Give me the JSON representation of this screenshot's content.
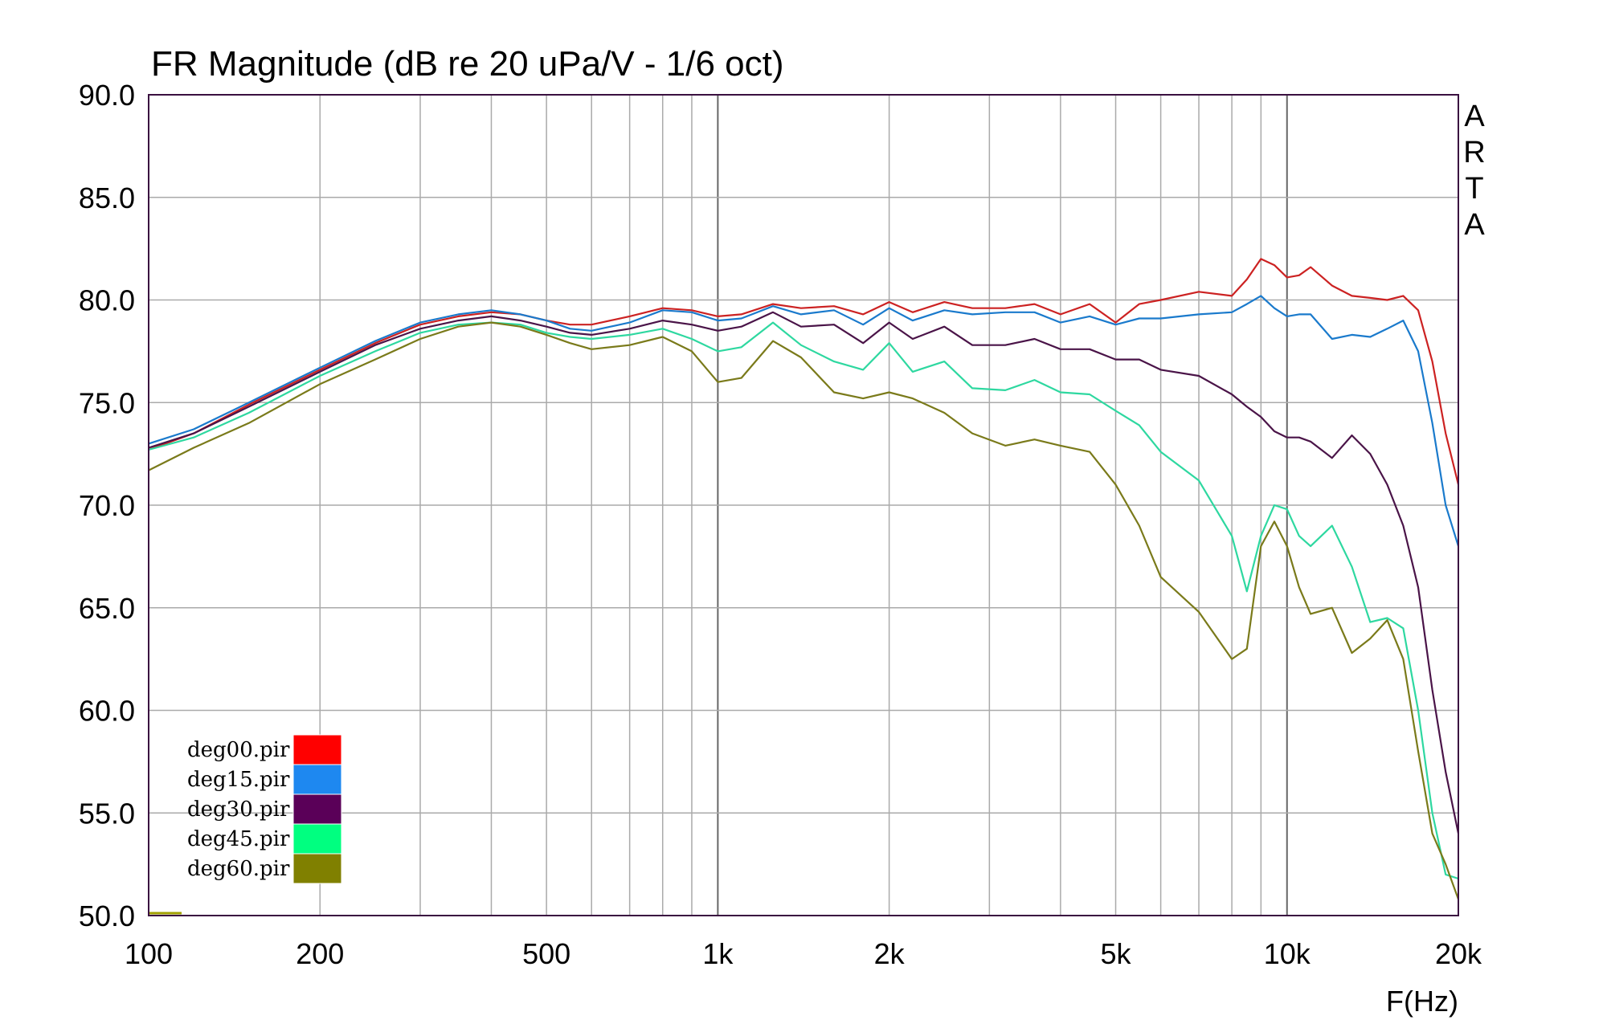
{
  "chart_data": {
    "type": "line",
    "title": "FR Magnitude (dB re 20 uPa/V - 1/6 oct)",
    "xlabel": "F(Hz)",
    "ylabel": "",
    "watermark": "ARTA",
    "x_scale": "log",
    "xlim": [
      100,
      20000
    ],
    "ylim": [
      50,
      90
    ],
    "grid": true,
    "legend_position": "bottom-left",
    "x_ticks": [
      {
        "value": 100,
        "label": "100"
      },
      {
        "value": 200,
        "label": "200"
      },
      {
        "value": 500,
        "label": "500"
      },
      {
        "value": 1000,
        "label": "1k"
      },
      {
        "value": 2000,
        "label": "2k"
      },
      {
        "value": 5000,
        "label": "5k"
      },
      {
        "value": 10000,
        "label": "10k"
      },
      {
        "value": 20000,
        "label": "20k"
      }
    ],
    "y_ticks": [
      {
        "value": 90,
        "label": "90.0"
      },
      {
        "value": 85,
        "label": "85.0"
      },
      {
        "value": 80,
        "label": "80.0"
      },
      {
        "value": 75,
        "label": "75.0"
      },
      {
        "value": 70,
        "label": "70.0"
      },
      {
        "value": 65,
        "label": "65.0"
      },
      {
        "value": 60,
        "label": "60.0"
      },
      {
        "value": 55,
        "label": "55.0"
      },
      {
        "value": 50,
        "label": "50.0"
      }
    ],
    "x": [
      100,
      120,
      150,
      200,
      250,
      300,
      350,
      400,
      450,
      500,
      550,
      600,
      700,
      800,
      900,
      1000,
      1100,
      1250,
      1400,
      1600,
      1800,
      2000,
      2200,
      2500,
      2800,
      3200,
      3600,
      4000,
      4500,
      5000,
      5500,
      6000,
      7000,
      8000,
      8500,
      9000,
      9500,
      10000,
      10500,
      11000,
      12000,
      13000,
      14000,
      15000,
      16000,
      17000,
      18000,
      19000,
      20000
    ],
    "series": [
      {
        "name": "deg00.pir",
        "color": "#cc2222",
        "values": [
          72.7,
          73.5,
          74.9,
          76.6,
          77.9,
          78.8,
          79.2,
          79.4,
          79.3,
          79.0,
          78.8,
          78.8,
          79.2,
          79.6,
          79.5,
          79.2,
          79.3,
          79.8,
          79.6,
          79.7,
          79.3,
          79.9,
          79.4,
          79.9,
          79.6,
          79.6,
          79.8,
          79.3,
          79.8,
          78.9,
          79.8,
          80.0,
          80.4,
          80.2,
          81.0,
          82.0,
          81.7,
          81.1,
          81.2,
          81.6,
          80.7,
          80.2,
          80.1,
          80.0,
          80.2,
          79.5,
          77.0,
          73.5,
          71.0
        ]
      },
      {
        "name": "deg15.pir",
        "color": "#1a7acc",
        "values": [
          73.0,
          73.7,
          75.0,
          76.7,
          78.0,
          78.9,
          79.3,
          79.5,
          79.3,
          79.0,
          78.6,
          78.5,
          78.9,
          79.5,
          79.4,
          79.0,
          79.1,
          79.7,
          79.3,
          79.5,
          78.8,
          79.6,
          79.0,
          79.5,
          79.3,
          79.4,
          79.4,
          78.9,
          79.2,
          78.8,
          79.1,
          79.1,
          79.3,
          79.4,
          79.8,
          80.2,
          79.6,
          79.2,
          79.3,
          79.3,
          78.1,
          78.3,
          78.2,
          78.6,
          79.0,
          77.5,
          74.0,
          70.0,
          68.0
        ]
      },
      {
        "name": "deg30.pir",
        "color": "#4a1448",
        "values": [
          72.8,
          73.5,
          74.8,
          76.5,
          77.8,
          78.6,
          79.0,
          79.2,
          79.0,
          78.7,
          78.4,
          78.3,
          78.6,
          79.0,
          78.8,
          78.5,
          78.7,
          79.4,
          78.7,
          78.8,
          77.9,
          78.9,
          78.1,
          78.7,
          77.8,
          77.8,
          78.1,
          77.6,
          77.6,
          77.1,
          77.1,
          76.6,
          76.3,
          75.4,
          74.8,
          74.3,
          73.6,
          73.3,
          73.3,
          73.1,
          72.3,
          73.4,
          72.5,
          71.0,
          69.0,
          66.0,
          61.0,
          57.0,
          54.0
        ]
      },
      {
        "name": "deg45.pir",
        "color": "#2ed8a0",
        "values": [
          72.7,
          73.3,
          74.5,
          76.3,
          77.5,
          78.4,
          78.8,
          78.9,
          78.8,
          78.4,
          78.2,
          78.1,
          78.3,
          78.6,
          78.1,
          77.5,
          77.7,
          78.9,
          77.8,
          77.0,
          76.6,
          77.9,
          76.5,
          77.0,
          75.7,
          75.6,
          76.1,
          75.5,
          75.4,
          74.6,
          73.9,
          72.6,
          71.2,
          68.5,
          65.8,
          68.5,
          70.0,
          69.8,
          68.5,
          68.0,
          69.0,
          67.0,
          64.3,
          64.5,
          64.0,
          60.0,
          55.0,
          52.0,
          51.8
        ]
      },
      {
        "name": "deg60.pir",
        "color": "#7a7a1a",
        "values": [
          71.7,
          72.8,
          74.0,
          75.9,
          77.1,
          78.1,
          78.7,
          78.9,
          78.7,
          78.3,
          77.9,
          77.6,
          77.8,
          78.2,
          77.5,
          76.0,
          76.2,
          78.0,
          77.2,
          75.5,
          75.2,
          75.5,
          75.2,
          74.5,
          73.5,
          72.9,
          73.2,
          72.9,
          72.6,
          71.0,
          69.0,
          66.5,
          64.8,
          62.5,
          63.0,
          68.0,
          69.2,
          68.0,
          66.0,
          64.7,
          65.0,
          62.8,
          63.5,
          64.4,
          62.5,
          58.0,
          54.0,
          52.5,
          50.8
        ]
      }
    ]
  },
  "legend": {
    "title": "",
    "entries": [
      {
        "label": "deg00.pir",
        "swatch": "#ff0000"
      },
      {
        "label": "deg15.pir",
        "swatch": "#1e88f0"
      },
      {
        "label": "deg30.pir",
        "swatch": "#5a0058"
      },
      {
        "label": "deg45.pir",
        "swatch": "#00ff80"
      },
      {
        "label": "deg60.pir",
        "swatch": "#808000"
      }
    ]
  },
  "colors": {
    "frame": "#3a1040",
    "grid": "#aaaaaa",
    "grid_decade": "#666666"
  }
}
